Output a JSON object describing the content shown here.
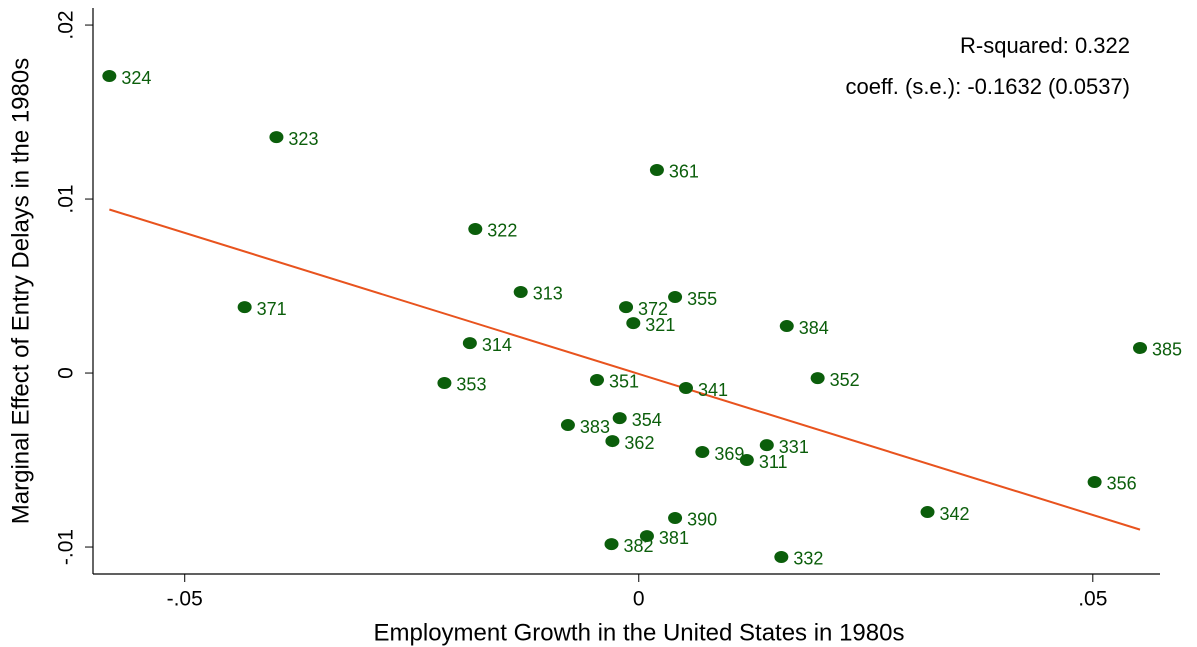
{
  "chart_data": {
    "type": "scatter",
    "xlabel": "Employment Growth in the United States in 1980s",
    "ylabel": "Marginal Effect of Entry Delays in the 1980s",
    "annotations": [
      "R-squared: 0.322",
      "coeff. (s.e.): -0.1632 (0.0537)"
    ],
    "xlim": [
      -0.0601,
      0.0574
    ],
    "ylim": [
      -0.01155,
      0.02098
    ],
    "xticks": [
      {
        "value": -0.05,
        "label": "-.05"
      },
      0,
      {
        "value": 0.05,
        "label": ".05"
      }
    ],
    "yticks": [
      {
        "value": -0.01,
        "label": "-.01"
      },
      0,
      {
        "value": 0.01,
        "label": ".01"
      },
      {
        "value": 0.02,
        "label": ".02"
      }
    ],
    "series": [
      {
        "color": "#0b5e0b",
        "labels": [
          "324",
          "323",
          "361",
          "322",
          "371",
          "313",
          "372",
          "355",
          "321",
          "384",
          "314",
          "385",
          "353",
          "351",
          "341",
          "352",
          "354",
          "383",
          "362",
          "369",
          "331",
          "311",
          "356",
          "342",
          "390",
          "381",
          "382",
          "332"
        ],
        "x": [
          -0.0583,
          -0.0399,
          0.002,
          -0.018,
          -0.0434,
          -0.013,
          -0.0014,
          0.004,
          -0.0006,
          0.0163,
          -0.0186,
          0.0552,
          -0.0214,
          -0.0046,
          0.0052,
          0.0197,
          -0.0021,
          -0.0078,
          -0.0029,
          0.007,
          0.0141,
          0.0119,
          0.0502,
          0.0318,
          0.004,
          0.0009,
          -0.003,
          0.0157
        ],
        "values": [
          0.01707,
          0.01356,
          0.01167,
          0.00828,
          0.00379,
          0.00466,
          0.00379,
          0.00437,
          0.00287,
          0.0027,
          0.00172,
          0.00144,
          -0.00057,
          -0.0004,
          -0.00086,
          -0.00029,
          -0.00259,
          -0.00299,
          -0.00391,
          -0.00454,
          -0.00414,
          -0.005,
          -0.00626,
          -0.00799,
          -0.00833,
          -0.00937,
          -0.00983,
          -0.01057
        ]
      }
    ],
    "fit_line": {
      "color": "#e8531e",
      "x": [
        -0.0583,
        0.0552
      ],
      "values": [
        0.0094,
        -0.009
      ]
    }
  }
}
